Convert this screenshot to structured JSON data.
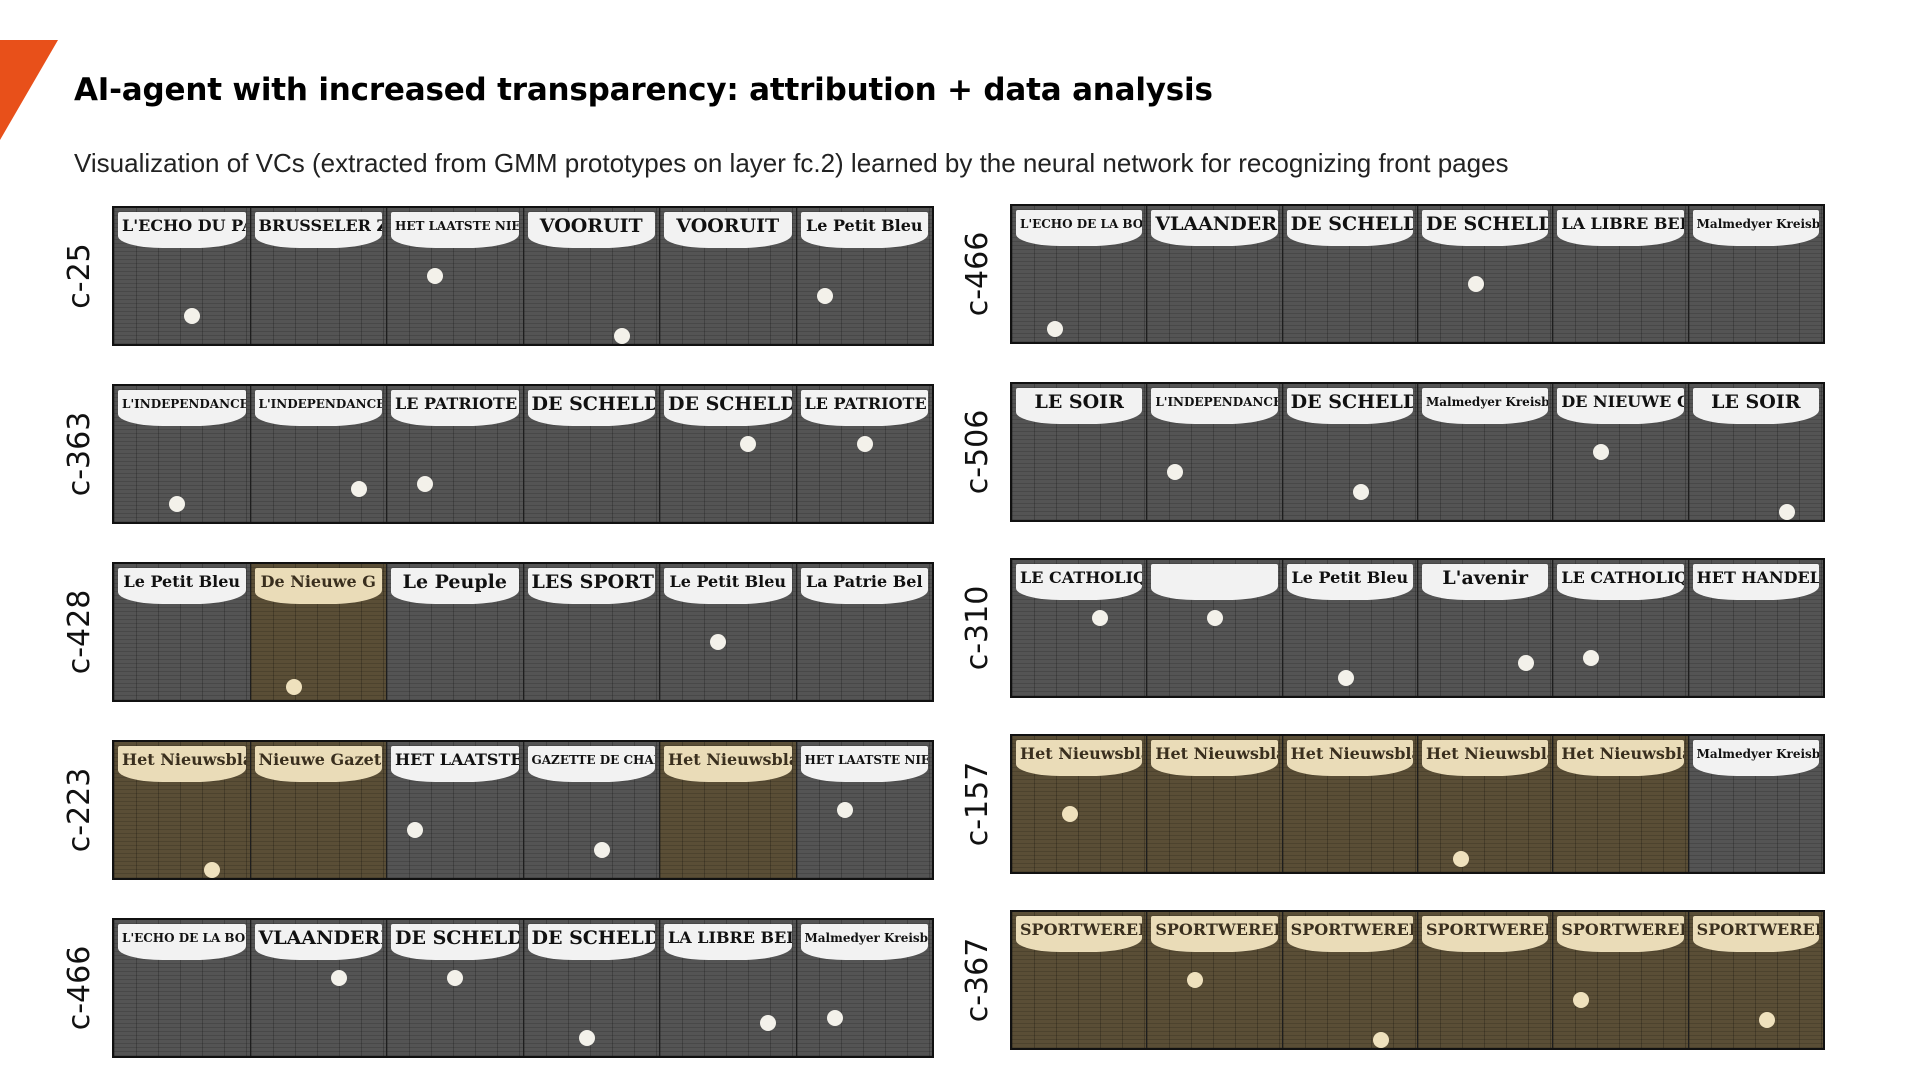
{
  "header": {
    "title": "AI-agent with increased transparency: attribution + data analysis",
    "subtitle": "Visualization of VCs (extracted from GMM prototypes on layer fc.2) learned by the neural network for recognizing front pages",
    "accent_color": "#e8501a"
  },
  "left_rows": [
    {
      "label": "c-25",
      "pages": [
        {
          "title": "L'ECHO DU PA",
          "tone": "gray"
        },
        {
          "title": "BRUSSELER ZEITUNG",
          "tone": "gray"
        },
        {
          "title": "HET LAATSTE NIEUWS",
          "tone": "gray"
        },
        {
          "title": "VOORUIT",
          "tone": "gray"
        },
        {
          "title": "VOORUIT",
          "tone": "gray"
        },
        {
          "title": "Le Petit Bleu",
          "tone": "gray"
        }
      ]
    },
    {
      "label": "c-363",
      "pages": [
        {
          "title": "L'INDEPENDANCE BELGE",
          "tone": "gray"
        },
        {
          "title": "L'INDEPENDANCE BELGE",
          "tone": "gray"
        },
        {
          "title": "LE PATRIOTE",
          "tone": "gray"
        },
        {
          "title": "DE SCHELDE",
          "tone": "gray"
        },
        {
          "title": "DE SCHELDE",
          "tone": "gray"
        },
        {
          "title": "LE PATRIOTE",
          "tone": "gray"
        }
      ]
    },
    {
      "label": "c-428",
      "pages": [
        {
          "title": "Le Petit Bleu",
          "tone": "gray"
        },
        {
          "title": "De Nieuwe G",
          "tone": "sepia"
        },
        {
          "title": "Le Peuple",
          "tone": "gray"
        },
        {
          "title": "LES SPORTS",
          "tone": "gray"
        },
        {
          "title": "Le Petit Bleu",
          "tone": "gray"
        },
        {
          "title": "La Patrie Bel",
          "tone": "gray"
        }
      ]
    },
    {
      "label": "c-223",
      "pages": [
        {
          "title": "Het Nieuwsblad",
          "tone": "sepia"
        },
        {
          "title": "Nieuwe Gazet",
          "tone": "sepia"
        },
        {
          "title": "HET LAATSTE NIEUW",
          "tone": "gray"
        },
        {
          "title": "GAZETTE DE CHARLEROI",
          "tone": "gray"
        },
        {
          "title": "Het Nieuwsblad",
          "tone": "sepia"
        },
        {
          "title": "HET LAATSTE NIEUWS",
          "tone": "gray"
        }
      ]
    },
    {
      "label": "c-466",
      "pages": [
        {
          "title": "L'ECHO DE LA BOURSE",
          "tone": "gray"
        },
        {
          "title": "VLAANDEREN",
          "tone": "gray"
        },
        {
          "title": "DE SCHELDE",
          "tone": "gray"
        },
        {
          "title": "DE SCHELDE",
          "tone": "gray"
        },
        {
          "title": "LA LIBRE BELGIQUE",
          "tone": "gray"
        },
        {
          "title": "Malmedyer Kreisblatt",
          "tone": "gray"
        }
      ]
    }
  ],
  "right_rows": [
    {
      "label": "c-466",
      "pages": [
        {
          "title": "L'ECHO DE LA BOURSE",
          "tone": "gray"
        },
        {
          "title": "VLAANDEREN",
          "tone": "gray"
        },
        {
          "title": "DE SCHELDE",
          "tone": "gray"
        },
        {
          "title": "DE SCHELDE",
          "tone": "gray"
        },
        {
          "title": "LA LIBRE BELGIQUE",
          "tone": "gray"
        },
        {
          "title": "Malmedyer Kreisblatt",
          "tone": "gray"
        }
      ]
    },
    {
      "label": "c-506",
      "pages": [
        {
          "title": "LE SOIR",
          "tone": "gray"
        },
        {
          "title": "L'INDEPENDANCE BELGE",
          "tone": "gray"
        },
        {
          "title": "DE SCHELDE",
          "tone": "gray"
        },
        {
          "title": "Malmedyer Kreisblatt",
          "tone": "gray"
        },
        {
          "title": "DE NIEUWE GIDS",
          "tone": "gray"
        },
        {
          "title": "LE SOIR",
          "tone": "gray"
        }
      ]
    },
    {
      "label": "c-310",
      "pages": [
        {
          "title": "LE CATHOLIQUE",
          "tone": "gray"
        },
        {
          "title": "",
          "tone": "gray"
        },
        {
          "title": "Le Petit Bleu",
          "tone": "gray"
        },
        {
          "title": "L'avenir",
          "tone": "gray"
        },
        {
          "title": "LE CATHOLIQUE",
          "tone": "gray"
        },
        {
          "title": "HET HANDELSBLAD",
          "tone": "gray"
        }
      ]
    },
    {
      "label": "c-157",
      "pages": [
        {
          "title": "Het Nieuwsblad",
          "tone": "sepia"
        },
        {
          "title": "Het Nieuwsblad",
          "tone": "sepia"
        },
        {
          "title": "Het Nieuwsblad",
          "tone": "sepia"
        },
        {
          "title": "Het Nieuwsblad",
          "tone": "sepia"
        },
        {
          "title": "Het Nieuwsblad",
          "tone": "sepia"
        },
        {
          "title": "Malmedyer Kreisblatt",
          "tone": "gray"
        }
      ]
    },
    {
      "label": "c-367",
      "pages": [
        {
          "title": "SPORTWERELD",
          "tone": "sepia"
        },
        {
          "title": "SPORTWERELD",
          "tone": "sepia"
        },
        {
          "title": "SPORTWERELD",
          "tone": "sepia"
        },
        {
          "title": "SPORTWERELD",
          "tone": "sepia"
        },
        {
          "title": "SPORTWERELD",
          "tone": "sepia"
        },
        {
          "title": "SPORTWERELD",
          "tone": "sepia"
        }
      ]
    }
  ]
}
